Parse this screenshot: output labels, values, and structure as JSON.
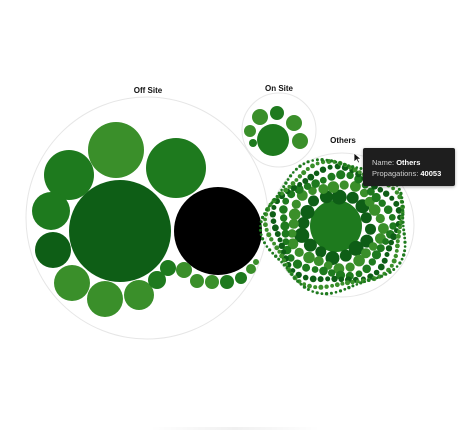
{
  "chart_data": {
    "type": "circle-packing",
    "groups": [
      {
        "name": "Off Site"
      },
      {
        "name": "On Site"
      },
      {
        "name": "Others"
      }
    ],
    "colors": {
      "leaf_dark": "#0e5e16",
      "leaf_mid": "#1e7a1e",
      "leaf_light": "#3a8f2a",
      "highlight": "#000000",
      "outline": "#e6e6e6"
    }
  },
  "tooltip": {
    "name_label": "Name:",
    "name_value": "Others",
    "propagations_label": "Propagations:",
    "propagations_value": "40053"
  }
}
